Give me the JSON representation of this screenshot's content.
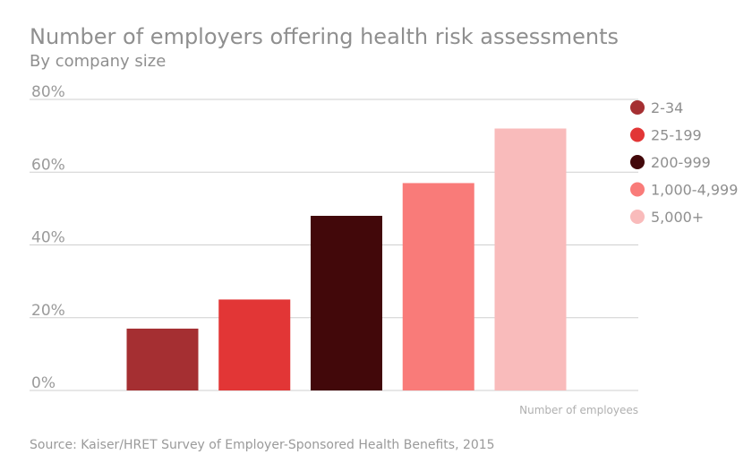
{
  "chart_data": {
    "type": "bar",
    "title": "Number of employers offering health risk assessments",
    "subtitle": "By company size",
    "xlabel": "Number of employees",
    "ylabel": "",
    "ylim": [
      0,
      80
    ],
    "yticks": [
      0,
      20,
      40,
      60,
      80
    ],
    "ytick_labels": [
      "0%",
      "20%",
      "40%",
      "60%",
      "80%"
    ],
    "grid": true,
    "legend_position": "right",
    "categories": [
      "2-34",
      "25-199",
      "200-999",
      "1,000-4,999",
      "5,000+"
    ],
    "values": [
      17,
      25,
      48,
      57,
      72
    ],
    "colors": [
      "#a52f32",
      "#e23636",
      "#42080a",
      "#f97b79",
      "#f9bbbb"
    ]
  },
  "source": "Source: Kaiser/HRET Survey of Employer-Sponsored Health Benefits, 2015"
}
